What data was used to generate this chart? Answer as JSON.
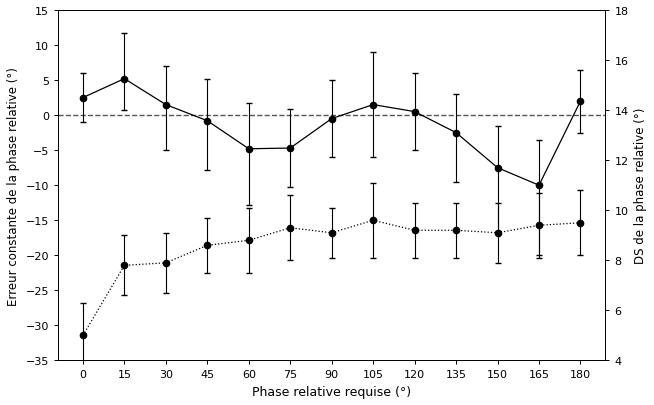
{
  "x": [
    0,
    15,
    30,
    45,
    60,
    75,
    90,
    105,
    120,
    135,
    150,
    165,
    180
  ],
  "mean_solid": [
    2.5,
    5.2,
    1.5,
    -0.8,
    -4.8,
    -4.7,
    -0.5,
    1.5,
    0.5,
    -2.5,
    -7.5,
    -10.0,
    2.0
  ],
  "err_solid_upper": [
    3.5,
    6.5,
    5.5,
    6.0,
    6.5,
    5.5,
    5.5,
    7.5,
    5.5,
    5.5,
    6.0,
    6.5,
    4.5
  ],
  "err_solid_lower": [
    3.5,
    4.5,
    6.5,
    7.0,
    8.0,
    5.5,
    5.5,
    7.5,
    5.5,
    7.0,
    9.0,
    10.0,
    4.5
  ],
  "ds_right": [
    5.0,
    7.8,
    7.9,
    8.6,
    8.8,
    9.3,
    9.1,
    9.6,
    9.2,
    9.2,
    9.1,
    9.4,
    9.5
  ],
  "err_ds_upper": [
    1.3,
    1.2,
    1.2,
    1.1,
    1.3,
    1.3,
    1.0,
    1.5,
    1.1,
    1.1,
    1.2,
    1.3,
    1.3
  ],
  "err_ds_lower": [
    1.3,
    1.2,
    1.2,
    1.1,
    1.3,
    1.3,
    1.0,
    1.5,
    1.1,
    1.1,
    1.2,
    1.3,
    1.3
  ],
  "left_ylim": [
    -35,
    15
  ],
  "right_ylim": [
    4,
    18
  ],
  "xlabel": "Phase relative requise (°)",
  "ylabel_left": "Erreur constante de la phase relative (°)",
  "ylabel_right": "DS de la phase relative (°)",
  "xticks": [
    0,
    15,
    30,
    45,
    60,
    75,
    90,
    105,
    120,
    135,
    150,
    165,
    180
  ],
  "left_yticks": [
    -35,
    -30,
    -25,
    -20,
    -15,
    -10,
    -5,
    0,
    5,
    10,
    15
  ],
  "right_yticks": [
    4,
    6,
    8,
    10,
    12,
    14,
    16,
    18
  ],
  "hline_y": 0,
  "line_color": "#000000",
  "markersize": 4.5,
  "capsize": 2.5,
  "fig_width": 6.54,
  "fig_height": 4.06,
  "dpi": 100
}
